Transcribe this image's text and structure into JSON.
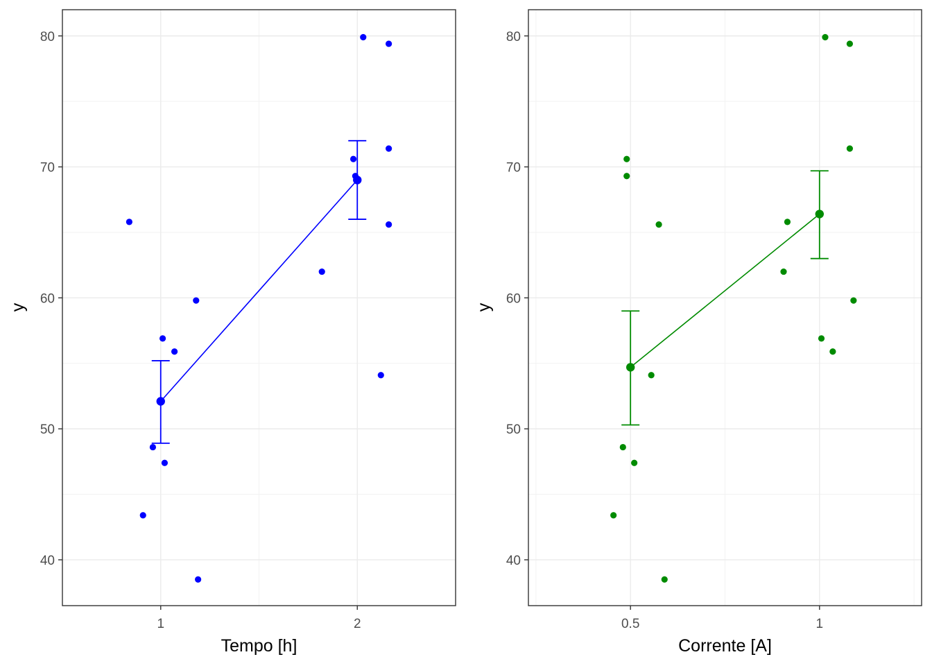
{
  "chart_data": [
    {
      "type": "scatter",
      "xlabel": "Tempo [h]",
      "ylabel": "y",
      "xlim": [
        0.5,
        2.5
      ],
      "ylim": [
        36.5,
        82
      ],
      "x_ticks": [
        1,
        2
      ],
      "x_tick_labels": [
        "1",
        "2"
      ],
      "y_ticks": [
        40,
        50,
        60,
        70,
        80
      ],
      "y_tick_labels": [
        "40",
        "50",
        "60",
        "70",
        "80"
      ],
      "y_minor": [
        45,
        55,
        65,
        75
      ],
      "grid": true,
      "color": "#0000ff",
      "points": [
        {
          "x": 0.84,
          "y": 65.8
        },
        {
          "x": 0.91,
          "y": 43.4
        },
        {
          "x": 0.96,
          "y": 48.6
        },
        {
          "x": 1.01,
          "y": 56.9
        },
        {
          "x": 1.02,
          "y": 47.4
        },
        {
          "x": 1.07,
          "y": 55.9
        },
        {
          "x": 1.18,
          "y": 59.8
        },
        {
          "x": 1.19,
          "y": 38.5
        },
        {
          "x": 1.82,
          "y": 62.0
        },
        {
          "x": 1.98,
          "y": 70.6
        },
        {
          "x": 1.99,
          "y": 69.3
        },
        {
          "x": 2.03,
          "y": 79.9
        },
        {
          "x": 2.12,
          "y": 54.1
        },
        {
          "x": 2.16,
          "y": 71.4
        },
        {
          "x": 2.16,
          "y": 65.6
        },
        {
          "x": 2.16,
          "y": 79.4
        }
      ],
      "means": [
        {
          "x": 1,
          "y": 52.1,
          "ymin": 48.9,
          "ymax": 55.2
        },
        {
          "x": 2,
          "y": 69.0,
          "ymin": 66.0,
          "ymax": 72.0
        }
      ]
    },
    {
      "type": "scatter",
      "xlabel": "Corrente [A]",
      "ylabel": "y",
      "xlim": [
        0.23,
        1.27
      ],
      "ylim": [
        36.5,
        82
      ],
      "x_ticks": [
        0.5,
        1
      ],
      "x_tick_labels": [
        "0.5",
        "1"
      ],
      "y_ticks": [
        40,
        50,
        60,
        70,
        80
      ],
      "y_tick_labels": [
        "40",
        "50",
        "60",
        "70",
        "80"
      ],
      "y_minor": [
        45,
        55,
        65,
        75
      ],
      "grid": true,
      "color": "#008b00",
      "points": [
        {
          "x": 0.455,
          "y": 43.4
        },
        {
          "x": 0.48,
          "y": 48.6
        },
        {
          "x": 0.49,
          "y": 70.6
        },
        {
          "x": 0.49,
          "y": 69.3
        },
        {
          "x": 0.51,
          "y": 47.4
        },
        {
          "x": 0.555,
          "y": 54.1
        },
        {
          "x": 0.575,
          "y": 65.6
        },
        {
          "x": 0.59,
          "y": 38.5
        },
        {
          "x": 0.905,
          "y": 62.0
        },
        {
          "x": 0.915,
          "y": 65.8
        },
        {
          "x": 1.005,
          "y": 56.9
        },
        {
          "x": 1.015,
          "y": 79.9
        },
        {
          "x": 1.035,
          "y": 55.9
        },
        {
          "x": 1.08,
          "y": 79.4
        },
        {
          "x": 1.08,
          "y": 71.4
        },
        {
          "x": 1.09,
          "y": 59.8
        }
      ],
      "means": [
        {
          "x": 0.5,
          "y": 54.7,
          "ymin": 50.3,
          "ymax": 59.0
        },
        {
          "x": 1,
          "y": 66.4,
          "ymin": 63.0,
          "ymax": 69.7
        }
      ]
    }
  ]
}
